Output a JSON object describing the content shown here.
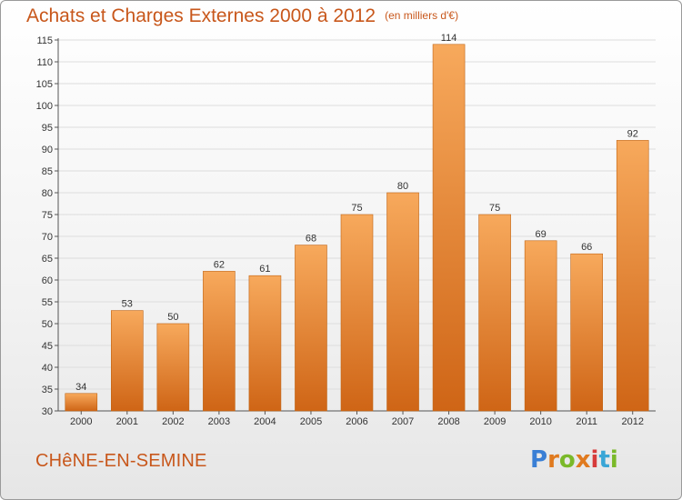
{
  "header": {
    "title": "Achats et Charges Externes 2000 à 2012",
    "subtitle": "(en milliers d'€)"
  },
  "footer": {
    "commune": "CHêNE-EN-SEMINE",
    "brand": [
      "P",
      "r",
      "o",
      "x",
      "i",
      "t",
      "i"
    ]
  },
  "colors": {
    "bar_top": "#f7a95c",
    "bar_bottom": "#cf6516",
    "title": "#c8571b",
    "brand": [
      "#3a7fd5",
      "#e07a1f",
      "#7ab929",
      "#e07a1f",
      "#d63b3b",
      "#3aa6d6",
      "#7ab929"
    ]
  },
  "chart_data": {
    "type": "bar",
    "categories": [
      "2000",
      "2001",
      "2002",
      "2003",
      "2004",
      "2005",
      "2006",
      "2007",
      "2008",
      "2009",
      "2010",
      "2011",
      "2012"
    ],
    "values": [
      34,
      53,
      50,
      62,
      61,
      68,
      75,
      80,
      114,
      75,
      69,
      66,
      92
    ],
    "data_labels": [
      "34",
      "53",
      "50",
      "62",
      "61",
      "68",
      "75",
      "80",
      "114",
      "75",
      "69",
      "66",
      "92"
    ],
    "ylim": [
      30,
      115
    ],
    "yticks": [
      30,
      35,
      40,
      45,
      50,
      55,
      60,
      65,
      70,
      75,
      80,
      85,
      90,
      95,
      100,
      105,
      110,
      115
    ],
    "grid": true
  }
}
